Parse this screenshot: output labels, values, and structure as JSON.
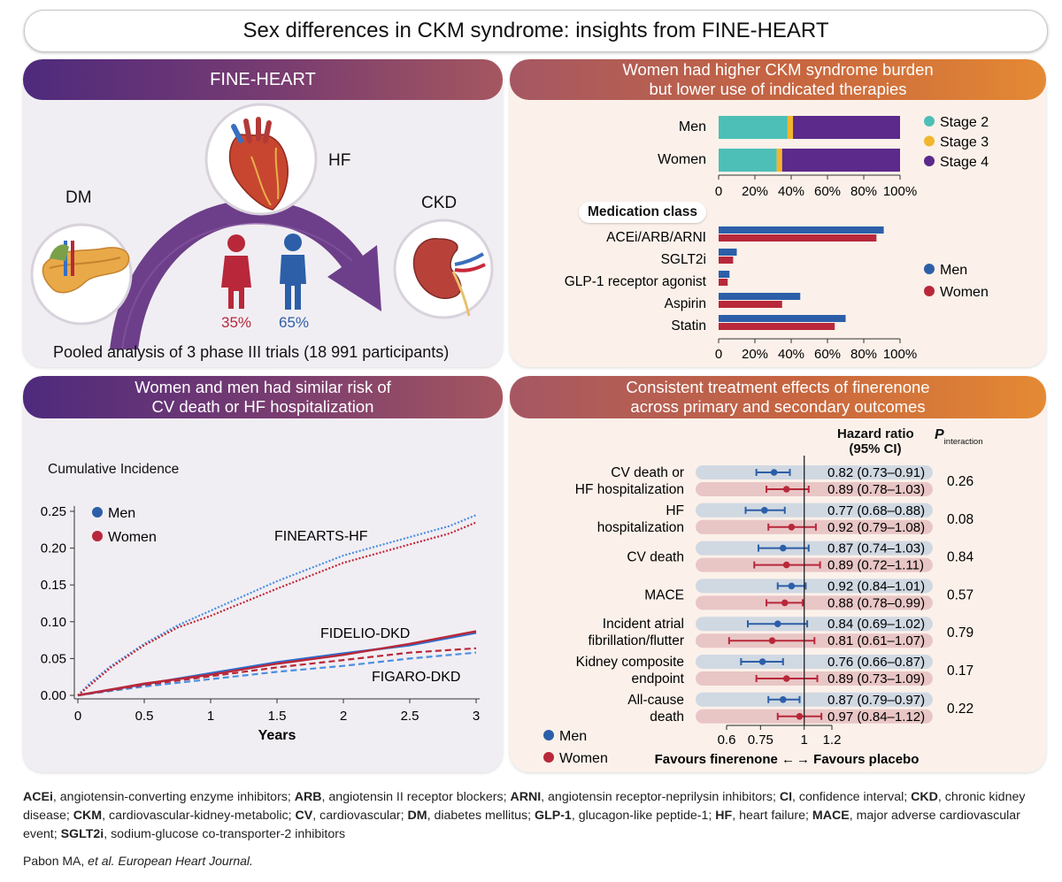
{
  "title": "Sex differences in CKM syndrome: insights from FINE-HEART",
  "panel1": {
    "header": "FINE-HEART",
    "labels": {
      "dm": "DM",
      "hf": "HF",
      "ckd": "CKD"
    },
    "women_pct": "35%",
    "men_pct": "65%",
    "caption": "Pooled analysis of 3 phase III trials (18 991 participants)",
    "icons": [
      "pancreas-icon",
      "heart-icon",
      "kidney-icon",
      "woman-icon",
      "man-icon"
    ]
  },
  "panel2": {
    "header_line1": "Women had higher CKM syndrome burden",
    "header_line2": "but lower use of indicated therapies",
    "stage_chart": {
      "type": "bar",
      "stacked": true,
      "categories": [
        "Men",
        "Women"
      ],
      "series": [
        {
          "name": "Stage 2",
          "color": "#4dbfb7",
          "values": [
            38,
            32
          ]
        },
        {
          "name": "Stage 3",
          "color": "#f2b62e",
          "values": [
            3,
            3
          ]
        },
        {
          "name": "Stage 4",
          "color": "#5b2a8a",
          "values": [
            59,
            65
          ]
        }
      ],
      "ticks": [
        "0",
        "20%",
        "40%",
        "60%",
        "80%",
        "100%"
      ]
    },
    "med_chart": {
      "type": "bar",
      "title": "Medication class",
      "categories": [
        "ACEi/ARB/ARNI",
        "SGLT2i",
        "GLP-1 receptor agonist",
        "Aspirin",
        "Statin"
      ],
      "series": [
        {
          "name": "Men",
          "color": "#2c5fa8",
          "values": [
            91,
            10,
            6,
            45,
            70
          ]
        },
        {
          "name": "Women",
          "color": "#b8283a",
          "values": [
            87,
            8,
            5,
            35,
            64
          ]
        }
      ],
      "ticks": [
        "0",
        "20%",
        "40%",
        "60%",
        "80%",
        "100%"
      ]
    }
  },
  "panel3": {
    "header_line1": "Women and men had similar risk of",
    "header_line2": "CV death or HF hospitalization",
    "chart_data": {
      "type": "line",
      "ylabel": "Cumulative Incidence",
      "xlabel": "Years",
      "xlim": [
        0,
        3
      ],
      "ylim": [
        0,
        0.25
      ],
      "xticks": [
        "0",
        "0.5",
        "1",
        "1.5",
        "2",
        "2.5",
        "3"
      ],
      "yticks": [
        "0.00",
        "0.05",
        "0.10",
        "0.15",
        "0.20",
        "0.25"
      ],
      "legend": [
        {
          "label": "Men",
          "color": "#2c5fa8"
        },
        {
          "label": "Women",
          "color": "#b8283a"
        }
      ],
      "annotations": [
        "FINEARTS-HF",
        "FIDELIO-DKD",
        "FIGARO-DKD"
      ],
      "series": [
        {
          "name": "FINEARTS-HF Men",
          "color": "#4a8fe0",
          "style": "dotted",
          "x": [
            0,
            0.1,
            0.25,
            0.5,
            0.75,
            1,
            1.5,
            2,
            2.5,
            2.8,
            3
          ],
          "y": [
            0,
            0.018,
            0.04,
            0.07,
            0.095,
            0.115,
            0.155,
            0.19,
            0.215,
            0.23,
            0.245
          ]
        },
        {
          "name": "FINEARTS-HF Women",
          "color": "#c0283a",
          "style": "dotted",
          "x": [
            0,
            0.1,
            0.25,
            0.5,
            0.75,
            1,
            1.5,
            2,
            2.5,
            2.8,
            3
          ],
          "y": [
            0,
            0.015,
            0.038,
            0.068,
            0.092,
            0.108,
            0.145,
            0.18,
            0.205,
            0.22,
            0.235
          ]
        },
        {
          "name": "FIDELIO-DKD Men",
          "color": "#2c6fd0",
          "style": "solid",
          "x": [
            0,
            0.5,
            1,
            1.5,
            2,
            2.5,
            3
          ],
          "y": [
            0,
            0.015,
            0.03,
            0.045,
            0.057,
            0.068,
            0.085
          ]
        },
        {
          "name": "FIDELIO-DKD Women",
          "color": "#b8283a",
          "style": "solid",
          "x": [
            0,
            0.5,
            1,
            1.5,
            2,
            2.5,
            3
          ],
          "y": [
            0,
            0.016,
            0.028,
            0.043,
            0.055,
            0.07,
            0.087
          ]
        },
        {
          "name": "FIGARO-DKD Men",
          "color": "#4a8fe0",
          "style": "dashed",
          "x": [
            0,
            0.5,
            1,
            1.5,
            2,
            2.5,
            3
          ],
          "y": [
            0,
            0.012,
            0.022,
            0.032,
            0.04,
            0.05,
            0.058
          ]
        },
        {
          "name": "FIGARO-DKD Women",
          "color": "#b8283a",
          "style": "dashed",
          "x": [
            0,
            0.5,
            1,
            1.5,
            2,
            2.5,
            3
          ],
          "y": [
            0,
            0.014,
            0.026,
            0.038,
            0.048,
            0.058,
            0.064
          ]
        }
      ]
    }
  },
  "panel4": {
    "header_line1": "Consistent treatment effects of finerenone",
    "header_line2": "across primary and secondary outcomes",
    "col_hr_line1": "Hazard ratio",
    "col_hr_line2": "(95% CI)",
    "col_p": "P",
    "col_p_sub": "interaction",
    "axis_ticks": [
      "0.6",
      "0.75",
      "1",
      "1.2"
    ],
    "favours_left": "Favours finerenone ←",
    "favours_right": "→ Favours placebo",
    "legend": [
      {
        "label": "Men",
        "color": "#2c5fa8"
      },
      {
        "label": "Women",
        "color": "#b8283a"
      }
    ],
    "outcomes": [
      {
        "label_lines": [
          "CV death or",
          "HF hospitalization"
        ],
        "p": "0.26",
        "men": {
          "hr": 0.82,
          "lo": 0.73,
          "hi": 0.91,
          "text": "0.82 (0.73–0.91)"
        },
        "women": {
          "hr": 0.89,
          "lo": 0.78,
          "hi": 1.03,
          "text": "0.89 (0.78–1.03)"
        }
      },
      {
        "label_lines": [
          "HF",
          "hospitalization"
        ],
        "p": "0.08",
        "men": {
          "hr": 0.77,
          "lo": 0.68,
          "hi": 0.88,
          "text": "0.77 (0.68–0.88)"
        },
        "women": {
          "hr": 0.92,
          "lo": 0.79,
          "hi": 1.08,
          "text": "0.92 (0.79–1.08)"
        }
      },
      {
        "label_lines": [
          "CV death"
        ],
        "p": "0.84",
        "men": {
          "hr": 0.87,
          "lo": 0.74,
          "hi": 1.03,
          "text": "0.87 (0.74–1.03)"
        },
        "women": {
          "hr": 0.89,
          "lo": 0.72,
          "hi": 1.11,
          "text": "0.89 (0.72–1.11)"
        }
      },
      {
        "label_lines": [
          "MACE"
        ],
        "p": "0.57",
        "men": {
          "hr": 0.92,
          "lo": 0.84,
          "hi": 1.01,
          "text": "0.92 (0.84–1.01)"
        },
        "women": {
          "hr": 0.88,
          "lo": 0.78,
          "hi": 0.99,
          "text": "0.88 (0.78–0.99)"
        }
      },
      {
        "label_lines": [
          "Incident atrial",
          "fibrillation/flutter"
        ],
        "p": "0.79",
        "men": {
          "hr": 0.84,
          "lo": 0.69,
          "hi": 1.02,
          "text": "0.84 (0.69–1.02)"
        },
        "women": {
          "hr": 0.81,
          "lo": 0.61,
          "hi": 1.07,
          "text": "0.81 (0.61–1.07)"
        }
      },
      {
        "label_lines": [
          "Kidney composite",
          "endpoint"
        ],
        "p": "0.17",
        "men": {
          "hr": 0.76,
          "lo": 0.66,
          "hi": 0.87,
          "text": "0.76 (0.66–0.87)"
        },
        "women": {
          "hr": 0.89,
          "lo": 0.73,
          "hi": 1.09,
          "text": "0.89 (0.73–1.09)"
        }
      },
      {
        "label_lines": [
          "All-cause",
          "death"
        ],
        "p": "0.22",
        "men": {
          "hr": 0.87,
          "lo": 0.79,
          "hi": 0.97,
          "text": "0.87 (0.79–0.97)"
        },
        "women": {
          "hr": 0.97,
          "lo": 0.84,
          "hi": 1.12,
          "text": "0.97 (0.84–1.12)"
        }
      }
    ]
  },
  "footer": {
    "abbreviations": [
      {
        "abbr": "ACEi",
        "def": "angiotensin-converting enzyme inhibitors"
      },
      {
        "abbr": "ARB",
        "def": "angiotensin II receptor blockers"
      },
      {
        "abbr": "ARNI",
        "def": "angiotensin receptor-neprilysin inhibitors"
      },
      {
        "abbr": "CI",
        "def": "confidence interval"
      },
      {
        "abbr": "CKD",
        "def": "chronic kidney disease"
      },
      {
        "abbr": "CKM",
        "def": "cardiovascular-kidney-metabolic"
      },
      {
        "abbr": "CV",
        "def": "cardiovascular"
      },
      {
        "abbr": "DM",
        "def": "diabetes mellitus"
      },
      {
        "abbr": "GLP-1",
        "def": "glucagon-like peptide-1"
      },
      {
        "abbr": "HF",
        "def": "heart failure"
      },
      {
        "abbr": "MACE",
        "def": "major adverse cardiovascular event"
      },
      {
        "abbr": "SGLT2i",
        "def": "sodium-glucose co-transporter-2 inhibitors"
      }
    ],
    "citation_author": "Pabon MA, ",
    "citation_journal": "et al. European Heart Journal."
  }
}
